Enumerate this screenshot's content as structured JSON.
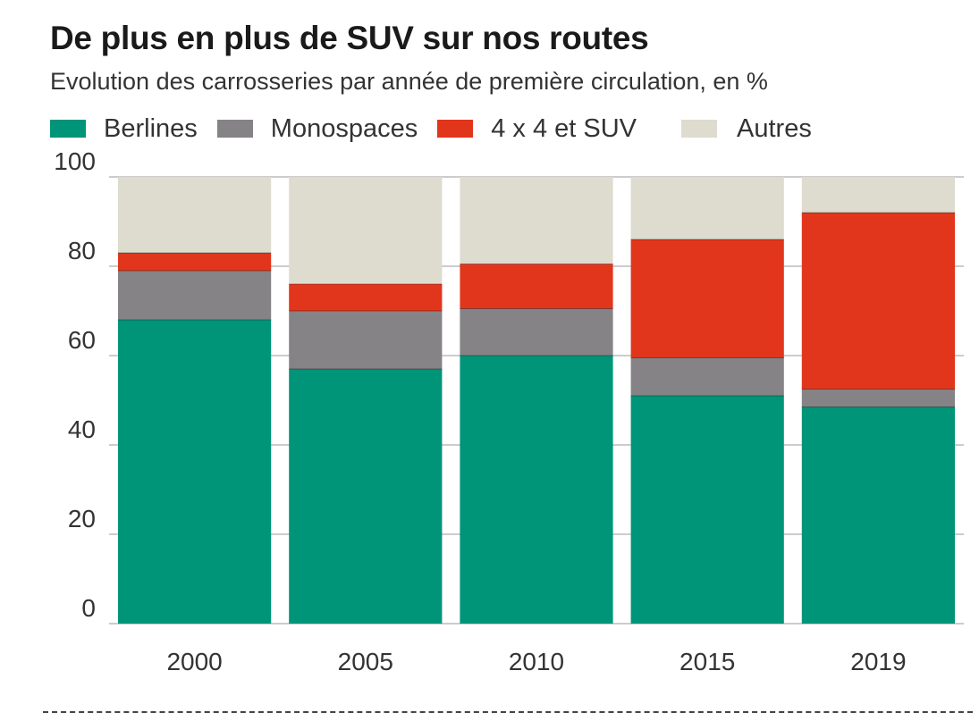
{
  "header": {
    "title": "De plus en plus de SUV sur nos routes",
    "subtitle": "Evolution des carrosseries par année de première circulation, en %"
  },
  "legend": [
    {
      "label": "Berlines",
      "color": "#009479"
    },
    {
      "label": "Monospaces",
      "color": "#858385"
    },
    {
      "label": "4 x 4 et SUV",
      "color": "#e2361c"
    },
    {
      "label": "Autres",
      "color": "#dedbcf"
    }
  ],
  "chart_data": {
    "type": "bar",
    "stacked": true,
    "title": "De plus en plus de SUV sur nos routes",
    "subtitle": "Evolution des carrosseries par année de première circulation, en %",
    "categories": [
      "2000",
      "2005",
      "2010",
      "2015",
      "2019"
    ],
    "series": [
      {
        "name": "Berlines",
        "color": "#009479",
        "values": [
          68,
          57,
          60,
          51,
          48.5
        ]
      },
      {
        "name": "Monospaces",
        "color": "#858385",
        "values": [
          11,
          13,
          10.5,
          8.5,
          4
        ]
      },
      {
        "name": "4 x 4 et SUV",
        "color": "#e2361c",
        "values": [
          4,
          6,
          10,
          26.5,
          39.5
        ]
      },
      {
        "name": "Autres",
        "color": "#dedbcf",
        "values": [
          17,
          24,
          19.5,
          14,
          8
        ]
      }
    ],
    "ylim": [
      0,
      100
    ],
    "yticks": [
      0,
      20,
      40,
      60,
      80,
      100
    ],
    "xlabel": "",
    "ylabel": "",
    "grid": true,
    "legend_position": "top"
  }
}
